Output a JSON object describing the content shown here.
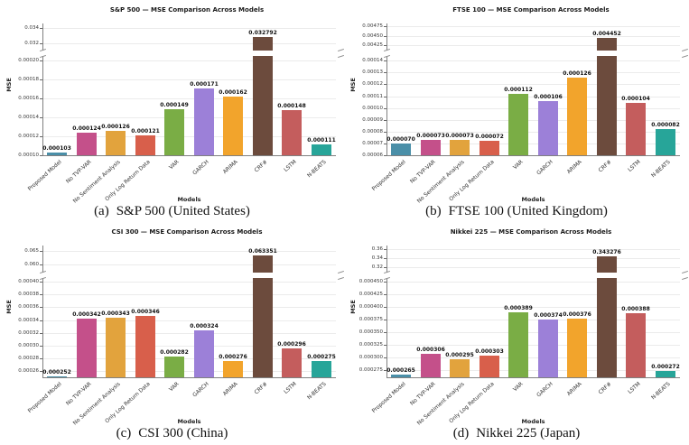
{
  "figure": {
    "background": "#ffffff",
    "grid_layout": "2x2",
    "models": [
      "Proposed Model",
      "No TVP-VAR",
      "No Sentiment Analysis",
      "Only Log Return Data",
      "VAR",
      "GARCH",
      "ARIMA",
      "CRF#",
      "LSTM",
      "N-BEATS"
    ],
    "palette": [
      "#4a8fa8",
      "#c4508a",
      "#e2a33d",
      "#d85f4b",
      "#7aad45",
      "#9c80d8",
      "#f2a42c",
      "#6c4b3d",
      "#c45d5d",
      "#27a599"
    ]
  },
  "chart_data": [
    {
      "id": "sp500",
      "type": "bar",
      "title": "S&P 500 — MSE Comparison Across Models",
      "xlabel": "Models",
      "ylabel": "MSE",
      "caption_prefix": "(a)",
      "caption_text": "S&P 500 (United States)",
      "grid": true,
      "legend": "none",
      "categories": [
        "Proposed Model",
        "No TVP-VAR",
        "No Sentiment Analysis",
        "Only Log Return Data",
        "VAR",
        "GARCH",
        "ARIMA",
        "CRF#",
        "LSTM",
        "N-BEATS"
      ],
      "values": [
        0.000103,
        0.000124,
        0.000126,
        0.000121,
        0.000149,
        0.000171,
        0.000162,
        0.032792,
        0.000148,
        0.000111
      ],
      "bar_colors": [
        "#4a8fa8",
        "#c4508a",
        "#e2a33d",
        "#d85f4b",
        "#7aad45",
        "#9c80d8",
        "#f2a42c",
        "#6c4b3d",
        "#c45d5d",
        "#27a599"
      ],
      "broken_axis": {
        "lower": {
          "range": [
            0.0001,
            0.000205
          ],
          "ticks": [
            0.0001,
            0.00012,
            0.00014,
            0.00016,
            0.00018,
            0.0002
          ],
          "tick_labels": [
            "0.00010",
            "0.00012",
            "0.00014",
            "0.00016",
            "0.00018",
            "0.00020"
          ]
        },
        "upper": {
          "range": [
            0.031,
            0.0346
          ],
          "ticks": [
            0.032,
            0.034
          ],
          "tick_labels": [
            "0.032",
            "0.034"
          ]
        }
      }
    },
    {
      "id": "ftse100",
      "type": "bar",
      "title": "FTSE 100 — MSE Comparison Across Models",
      "xlabel": "Models",
      "ylabel": "MSE",
      "caption_prefix": "(b)",
      "caption_text": "FTSE 100 (United Kingdom)",
      "grid": true,
      "legend": "none",
      "categories": [
        "Proposed Model",
        "No TVP-VAR",
        "No Sentiment Analysis",
        "Only Log Return Data",
        "VAR",
        "GARCH",
        "ARIMA",
        "CRF#",
        "LSTM",
        "N-BEATS"
      ],
      "values": [
        7e-05,
        7.3e-05,
        7.3e-05,
        7.2e-05,
        0.000112,
        0.000106,
        0.000126,
        0.004452,
        0.000104,
        8.2e-05
      ],
      "bar_colors": [
        "#4a8fa8",
        "#c4508a",
        "#e2a33d",
        "#d85f4b",
        "#7aad45",
        "#9c80d8",
        "#f2a42c",
        "#6c4b3d",
        "#c45d5d",
        "#27a599"
      ],
      "broken_axis": {
        "lower": {
          "range": [
            6e-05,
            0.000144
          ],
          "ticks": [
            6e-05,
            7e-05,
            8e-05,
            9e-05,
            0.0001,
            0.00011,
            0.00012,
            0.00013,
            0.00014
          ],
          "tick_labels": [
            "0.00006",
            "0.00007",
            "0.00008",
            "0.00009",
            "0.00010",
            "0.00011",
            "0.00012",
            "0.00013",
            "0.00014"
          ]
        },
        "upper": {
          "range": [
            0.00412,
            0.00482
          ],
          "ticks": [
            0.00425,
            0.0045,
            0.00475
          ],
          "tick_labels": [
            "0.00425",
            "0.00450",
            "0.00475"
          ]
        }
      }
    },
    {
      "id": "csi300",
      "type": "bar",
      "title": "CSI 300 — MSE Comparison Across Models",
      "xlabel": "Models",
      "ylabel": "MSE",
      "caption_prefix": "(c)",
      "caption_text": "CSI 300 (China)",
      "grid": true,
      "legend": "none",
      "categories": [
        "Proposed Model",
        "No TVP-VAR",
        "No Sentiment Analysis",
        "Only Log Return Data",
        "VAR",
        "GARCH",
        "ARIMA",
        "CRF#",
        "LSTM",
        "N-BEATS"
      ],
      "values": [
        0.000252,
        0.000342,
        0.000343,
        0.000346,
        0.000282,
        0.000324,
        0.000276,
        0.063351,
        0.000296,
        0.000275
      ],
      "bar_colors": [
        "#4a8fa8",
        "#c4508a",
        "#e2a33d",
        "#d85f4b",
        "#7aad45",
        "#9c80d8",
        "#f2a42c",
        "#6c4b3d",
        "#c45d5d",
        "#27a599"
      ],
      "broken_axis": {
        "lower": {
          "range": [
            0.00025,
            0.000406
          ],
          "ticks": [
            0.00026,
            0.00028,
            0.0003,
            0.00032,
            0.00034,
            0.00036,
            0.00038,
            0.0004
          ],
          "tick_labels": [
            "0.00026",
            "0.00028",
            "0.00030",
            "0.00032",
            "0.00034",
            "0.00036",
            "0.00038",
            "0.00040"
          ]
        },
        "upper": {
          "range": [
            0.0572,
            0.0668
          ],
          "ticks": [
            0.06,
            0.065
          ],
          "tick_labels": [
            "0.060",
            "0.065"
          ]
        }
      }
    },
    {
      "id": "nikkei225",
      "type": "bar",
      "title": "Nikkei 225 — MSE Comparison Across Models",
      "xlabel": "Models",
      "ylabel": "MSE",
      "caption_prefix": "(d)",
      "caption_text": "Nikkei 225 (Japan)",
      "grid": true,
      "legend": "none",
      "categories": [
        "Proposed Model",
        "No TVP-VAR",
        "No Sentiment Analysis",
        "Only Log Return Data",
        "VAR",
        "GARCH",
        "ARIMA",
        "CRF#",
        "LSTM",
        "N-BEATS"
      ],
      "values": [
        0.000265,
        0.000306,
        0.000295,
        0.000303,
        0.000389,
        0.000374,
        0.000376,
        0.343276,
        0.000388,
        0.000272
      ],
      "bar_colors": [
        "#4a8fa8",
        "#c4508a",
        "#e2a33d",
        "#d85f4b",
        "#7aad45",
        "#9c80d8",
        "#f2a42c",
        "#6c4b3d",
        "#c45d5d",
        "#27a599"
      ],
      "broken_axis": {
        "lower": {
          "range": [
            0.00026,
            0.000457
          ],
          "ticks": [
            0.000275,
            0.0003,
            0.000325,
            0.00035,
            0.000375,
            0.0004,
            0.000425,
            0.00045
          ],
          "tick_labels": [
            "0.000275",
            "0.000300",
            "0.000325",
            "0.000350",
            "0.000375",
            "0.000400",
            "0.000425",
            "0.000450"
          ]
        },
        "upper": {
          "range": [
            0.308,
            0.368
          ],
          "ticks": [
            0.32,
            0.34,
            0.36
          ],
          "tick_labels": [
            "0.32",
            "0.34",
            "0.36"
          ]
        }
      }
    }
  ]
}
